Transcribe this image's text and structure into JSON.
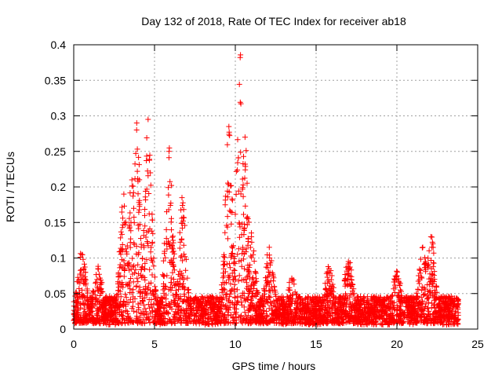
{
  "chart_data": {
    "type": "scatter",
    "title": "Day 132 of 2018, Rate Of TEC Index for receiver ab18",
    "xlabel": "GPS time / hours",
    "ylabel": "ROTI / TECUs",
    "xlim": [
      0,
      25
    ],
    "ylim": [
      0,
      0.4
    ],
    "grid": true,
    "marker": "+",
    "x_ticks": [
      0,
      5,
      10,
      15,
      20,
      25
    ],
    "y_ticks": [
      0,
      0.05,
      0.1,
      0.15,
      0.2,
      0.25,
      0.3,
      0.35,
      0.4
    ],
    "x_tick_labels": [
      "0",
      "5",
      "10",
      "15",
      "20",
      "25"
    ],
    "y_tick_labels": [
      "0",
      "0.05",
      "0.1",
      "0.15",
      "0.2",
      "0.25",
      "0.3",
      "0.35",
      "0.4"
    ],
    "series": [
      {
        "name": "ROTI ab18",
        "color": "#ff0000",
        "x_range": [
          0,
          23.8
        ],
        "baseline": 0.025,
        "peaks": [
          {
            "x": 0.5,
            "y": 0.105
          },
          {
            "x": 1.5,
            "y": 0.085
          },
          {
            "x": 3.1,
            "y": 0.19
          },
          {
            "x": 3.6,
            "y": 0.21
          },
          {
            "x": 3.9,
            "y": 0.29
          },
          {
            "x": 4.6,
            "y": 0.295
          },
          {
            "x": 5.9,
            "y": 0.25
          },
          {
            "x": 6.7,
            "y": 0.185
          },
          {
            "x": 9.6,
            "y": 0.285
          },
          {
            "x": 10.3,
            "y": 0.382
          },
          {
            "x": 10.6,
            "y": 0.27
          },
          {
            "x": 11.0,
            "y": 0.13
          },
          {
            "x": 12.1,
            "y": 0.115
          },
          {
            "x": 13.5,
            "y": 0.07
          },
          {
            "x": 15.8,
            "y": 0.085
          },
          {
            "x": 17.0,
            "y": 0.095
          },
          {
            "x": 20.0,
            "y": 0.075
          },
          {
            "x": 21.6,
            "y": 0.115
          },
          {
            "x": 22.1,
            "y": 0.13
          }
        ]
      }
    ]
  }
}
